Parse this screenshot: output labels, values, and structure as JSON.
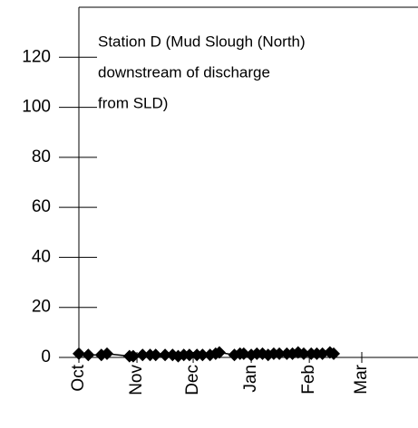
{
  "chart_data": {
    "type": "line",
    "annotation": [
      "Station D (Mud Slough (North)",
      "downstream of discharge",
      "from SLD)"
    ],
    "x": [
      0,
      5,
      12,
      15,
      27,
      29,
      34,
      38,
      41,
      46,
      50,
      53,
      56,
      59,
      63,
      66,
      70,
      73,
      75,
      83,
      86,
      88,
      92,
      95,
      98,
      101,
      104,
      107,
      111,
      114,
      117,
      120,
      124,
      127,
      130,
      134,
      136
    ],
    "series": [
      {
        "color": "#000000",
        "values": [
          1.5,
          1,
          1,
          1.5,
          0.5,
          0.5,
          1,
          1,
          1,
          1,
          1,
          0.5,
          1,
          1,
          1,
          1,
          1,
          1.5,
          2,
          1,
          1.5,
          1.5,
          1,
          1.5,
          1.5,
          1,
          1.5,
          1.5,
          1.5,
          1.5,
          2,
          1.5,
          1.5,
          1.5,
          1.5,
          2,
          1.5
        ]
      }
    ],
    "xlim": [
      0,
      181
    ],
    "xticks": [
      {
        "value": 0,
        "label": "Oct"
      },
      {
        "value": 31,
        "label": "Nov"
      },
      {
        "value": 61,
        "label": "Dec"
      },
      {
        "value": 92,
        "label": "Jan"
      },
      {
        "value": 123,
        "label": "Feb"
      },
      {
        "value": 151,
        "label": "Mar"
      }
    ],
    "ylim": [
      0,
      140
    ],
    "yticks": [
      0,
      20,
      40,
      60,
      80,
      100,
      120
    ]
  }
}
